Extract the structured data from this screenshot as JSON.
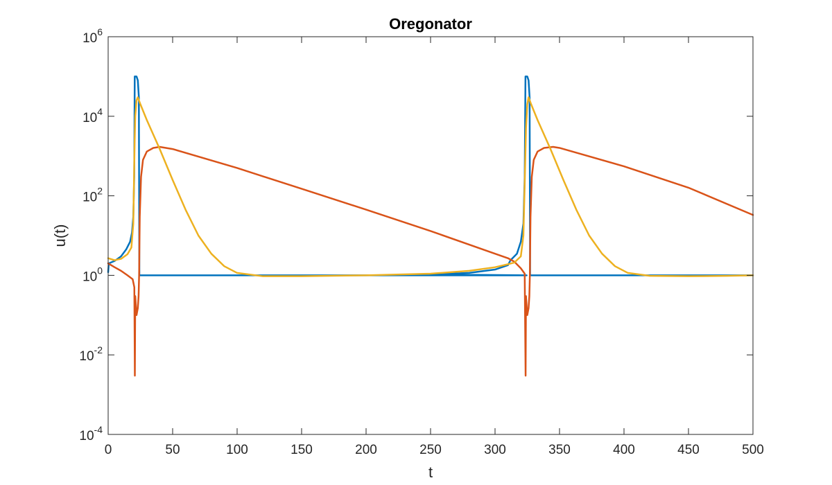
{
  "chart_data": {
    "type": "line",
    "title": "Oregonator",
    "xlabel": "t",
    "ylabel": "u(t)",
    "xlim": [
      0,
      500
    ],
    "ylim": [
      0.0001,
      1000000
    ],
    "yscale": "log",
    "grid": false,
    "x_ticks": [
      0,
      50,
      100,
      150,
      200,
      250,
      300,
      350,
      400,
      450,
      500
    ],
    "y_ticks": [
      {
        "value": 0.0001,
        "base": "10",
        "exp": "-4"
      },
      {
        "value": 0.01,
        "base": "10",
        "exp": "-2"
      },
      {
        "value": 1,
        "base": "10",
        "exp": "0"
      },
      {
        "value": 100,
        "base": "10",
        "exp": "2"
      },
      {
        "value": 10000,
        "base": "10",
        "exp": "4"
      },
      {
        "value": 1000000,
        "base": "10",
        "exp": "6"
      }
    ],
    "series": [
      {
        "color": "#0072BD",
        "points": [
          [
            0,
            1.2
          ],
          [
            0.5,
            2.0
          ],
          [
            5,
            2.3
          ],
          [
            10,
            3.0
          ],
          [
            14,
            4.5
          ],
          [
            17,
            7
          ],
          [
            18.5,
            12
          ],
          [
            19.5,
            30
          ],
          [
            20.2,
            300
          ],
          [
            20.6,
            100000
          ],
          [
            22,
            100000
          ],
          [
            23,
            80000
          ],
          [
            23.8,
            30000
          ],
          [
            24.2,
            1
          ],
          [
            100,
            1
          ],
          [
            200,
            1
          ],
          [
            300,
            1
          ],
          [
            324,
            1
          ],
          [
            324.5,
            1
          ],
          [
            250,
            1.05
          ],
          [
            280,
            1.15
          ],
          [
            300,
            1.4
          ],
          [
            310,
            1.8
          ],
          [
            312,
            2.4
          ],
          [
            317,
            3.5
          ],
          [
            320,
            7
          ],
          [
            322,
            20
          ],
          [
            323,
            300
          ],
          [
            323.6,
            100000
          ],
          [
            325,
            100000
          ],
          [
            326,
            80000
          ],
          [
            326.8,
            30000
          ],
          [
            327.2,
            1
          ],
          [
            400,
            1
          ],
          [
            450,
            1
          ],
          [
            500,
            1
          ]
        ]
      },
      {
        "color": "#D95319",
        "points": [
          [
            0,
            2.0
          ],
          [
            5,
            1.6
          ],
          [
            10,
            1.3
          ],
          [
            15,
            1.0
          ],
          [
            19,
            0.8
          ],
          [
            20.3,
            0.5
          ],
          [
            20.7,
            0.003
          ],
          [
            21,
            0.3
          ],
          [
            22,
            0.1
          ],
          [
            23,
            0.15
          ],
          [
            23.6,
            0.3
          ],
          [
            24,
            1
          ],
          [
            24.5,
            30
          ],
          [
            25.5,
            300
          ],
          [
            27,
            800
          ],
          [
            30,
            1300
          ],
          [
            35,
            1600
          ],
          [
            40,
            1700
          ],
          [
            50,
            1500
          ],
          [
            100,
            500
          ],
          [
            150,
            150
          ],
          [
            200,
            45
          ],
          [
            250,
            13
          ],
          [
            300,
            3.5
          ],
          [
            310,
            2.7
          ],
          [
            315,
            2.2
          ],
          [
            320,
            1.5
          ],
          [
            323,
            1.1
          ],
          [
            323.7,
            0.003
          ],
          [
            324,
            0.3
          ],
          [
            325,
            0.1
          ],
          [
            326,
            0.15
          ],
          [
            326.6,
            0.3
          ],
          [
            327,
            1
          ],
          [
            327.5,
            30
          ],
          [
            328.5,
            300
          ],
          [
            330,
            800
          ],
          [
            333,
            1300
          ],
          [
            338,
            1600
          ],
          [
            345,
            1700
          ],
          [
            350,
            1600
          ],
          [
            400,
            550
          ],
          [
            450,
            160
          ],
          [
            500,
            33
          ]
        ]
      },
      {
        "color": "#EDB120",
        "points": [
          [
            0,
            2.7
          ],
          [
            5,
            2.4
          ],
          [
            10,
            2.6
          ],
          [
            15,
            3.4
          ],
          [
            18,
            5
          ],
          [
            19.5,
            20
          ],
          [
            20.5,
            2000
          ],
          [
            21,
            10000
          ],
          [
            22,
            25000
          ],
          [
            23,
            30000
          ],
          [
            25,
            20000
          ],
          [
            30,
            8000
          ],
          [
            40,
            1500
          ],
          [
            50,
            250
          ],
          [
            60,
            45
          ],
          [
            70,
            10
          ],
          [
            80,
            3.5
          ],
          [
            90,
            1.7
          ],
          [
            100,
            1.15
          ],
          [
            120,
            0.95
          ],
          [
            150,
            0.95
          ],
          [
            200,
            1.0
          ],
          [
            250,
            1.1
          ],
          [
            280,
            1.3
          ],
          [
            300,
            1.6
          ],
          [
            310,
            1.9
          ],
          [
            315,
            2.1
          ],
          [
            320,
            3
          ],
          [
            322,
            10
          ],
          [
            323,
            200
          ],
          [
            324,
            5000
          ],
          [
            325,
            20000
          ],
          [
            326,
            30000
          ],
          [
            328,
            20000
          ],
          [
            333,
            8000
          ],
          [
            343,
            1500
          ],
          [
            353,
            250
          ],
          [
            363,
            45
          ],
          [
            373,
            10
          ],
          [
            383,
            3.5
          ],
          [
            393,
            1.7
          ],
          [
            403,
            1.15
          ],
          [
            420,
            0.97
          ],
          [
            450,
            0.95
          ],
          [
            480,
            0.97
          ],
          [
            500,
            1.0
          ]
        ]
      }
    ]
  }
}
